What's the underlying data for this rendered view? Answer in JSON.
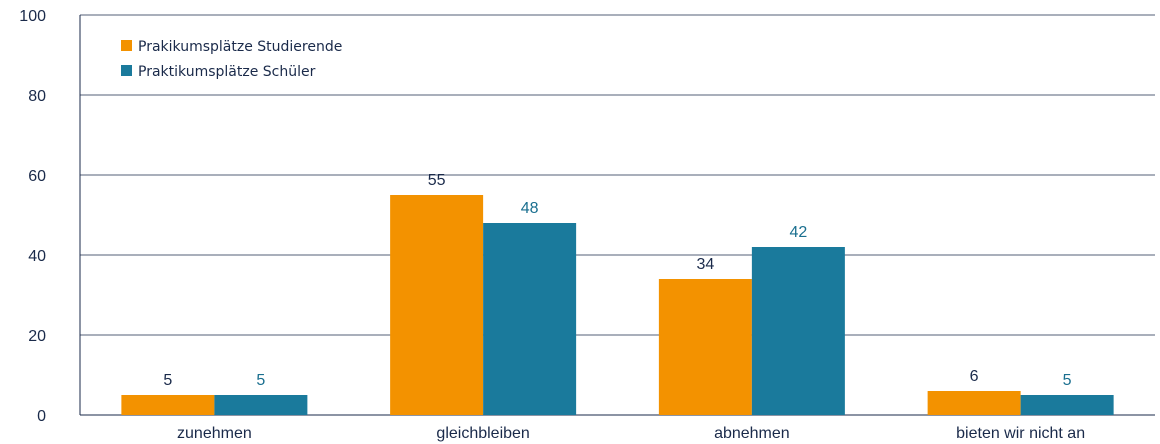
{
  "chart_data": {
    "type": "bar",
    "categories": [
      "zunehmen",
      "gleichbleiben",
      "abnehmen",
      "bieten wir nicht an"
    ],
    "series": [
      {
        "name": "Prakikumsplätze Studierende",
        "values": [
          5,
          55,
          34,
          6
        ],
        "color": "#f39200",
        "label_color": "#1a2a4a"
      },
      {
        "name": "Praktikumsplätze Schüler",
        "values": [
          5,
          48,
          42,
          5
        ],
        "color": "#1a7a9c",
        "label_color": "#1a6f8f"
      }
    ],
    "ylim": [
      0,
      100
    ],
    "yticks": [
      0,
      20,
      40,
      60,
      80,
      100
    ],
    "grid": true,
    "legend_position": "top-left",
    "xlabel": "",
    "ylabel": "",
    "title": ""
  }
}
